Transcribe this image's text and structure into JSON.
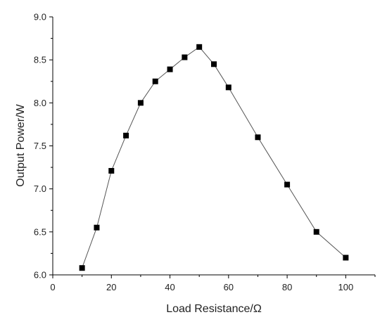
{
  "chart_data": {
    "type": "line",
    "title": "",
    "xlabel": "Load Resistance/Ω",
    "ylabel": "Output Power/W",
    "xlim": [
      0,
      110
    ],
    "ylim": [
      6.0,
      9.0
    ],
    "x_ticks": [
      0,
      20,
      40,
      60,
      80,
      100
    ],
    "x_tick_labels": [
      "0",
      "20",
      "40",
      "60",
      "80",
      "100"
    ],
    "y_ticks": [
      6.0,
      6.5,
      7.0,
      7.5,
      8.0,
      8.5,
      9.0
    ],
    "y_tick_labels": [
      "6.0",
      "6.5",
      "7.0",
      "7.5",
      "8.0",
      "8.5",
      "9.0"
    ],
    "grid": false,
    "legend": "none",
    "marker": "square",
    "series": [
      {
        "x": [
          10,
          15,
          20,
          25,
          30,
          35,
          40,
          45,
          50,
          55,
          60,
          70,
          80,
          90,
          100
        ],
        "y": [
          6.08,
          6.55,
          7.21,
          7.62,
          8.0,
          8.25,
          8.39,
          8.53,
          8.65,
          8.45,
          8.18,
          7.6,
          7.05,
          6.5,
          6.2
        ]
      }
    ]
  }
}
